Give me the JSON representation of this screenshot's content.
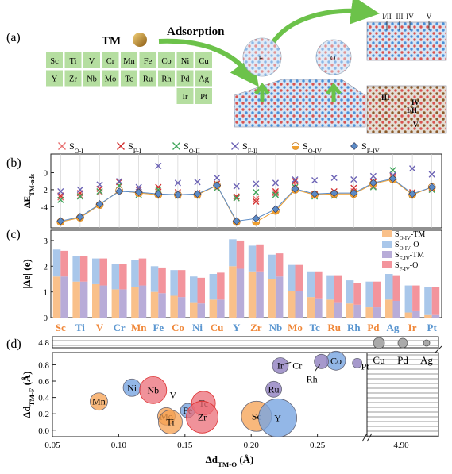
{
  "colors": {
    "o1": "#e87070",
    "f1": "#d23030",
    "o2": "#3fa55a",
    "f2": "#6c63b5",
    "o4": "#f0a030",
    "f4": "#5b8bc6",
    "grid": "#cccccc",
    "tile": "#b5dea0",
    "arrow": "#6cc24a",
    "orange": "#f0883a",
    "blue": "#5a96d0"
  },
  "panel_a": {
    "label": "(a)",
    "tm": "TM",
    "adsorption": "Adsorption",
    "pt_f": "F",
    "pt_o": "O",
    "layers": [
      "I/II",
      "III",
      "IV",
      "V"
    ],
    "side_labels": [
      "III",
      "IV",
      "I/II",
      "V"
    ],
    "table_rows": [
      [
        "Sc",
        "Ti",
        "V",
        "Cr",
        "Mn",
        "Fe",
        "Co",
        "Ni",
        "Cu"
      ],
      [
        "Y",
        "Zr",
        "Nb",
        "Mo",
        "Tc",
        "Ru",
        "Rh",
        "Pd",
        "Ag"
      ],
      [
        "",
        "",
        "",
        "",
        "",
        "",
        "",
        "Ir",
        "Pt"
      ]
    ]
  },
  "legend": [
    {
      "key": "o1",
      "text": "S",
      "sub": "O-I",
      "marker": "x-pink"
    },
    {
      "key": "f1",
      "text": "S",
      "sub": "F-I",
      "marker": "x-red"
    },
    {
      "key": "o2",
      "text": "S",
      "sub": "O-II",
      "marker": "x-green"
    },
    {
      "key": "f2",
      "text": "S",
      "sub": "F-II",
      "marker": "x-purple"
    },
    {
      "key": "o4",
      "text": "S",
      "sub": "O-IV",
      "marker": "half-orange"
    },
    {
      "key": "f4",
      "text": "S",
      "sub": "F-IV",
      "marker": "diamond-blue"
    }
  ],
  "elements": [
    "Sc",
    "Ti",
    "V",
    "Cr",
    "Mn",
    "Fe",
    "Co",
    "Ni",
    "Cu",
    "Y",
    "Zr",
    "Nb",
    "Mo",
    "Tc",
    "Ru",
    "Rh",
    "Pd",
    "Ag",
    "Ir",
    "Pt"
  ],
  "element_colors": [
    "o",
    "b",
    "o",
    "b",
    "o",
    "b",
    "o",
    "b",
    "o",
    "b",
    "o",
    "b",
    "o",
    "b",
    "o",
    "b",
    "o",
    "b",
    "o",
    "b"
  ],
  "chart_data": [
    {
      "type": "line",
      "panel": "(b)",
      "ylabel": "ΔE",
      "ylabel_sub": "TM-ads",
      "yticks": [
        -4,
        -2,
        0
      ],
      "ylim": [
        -6.5,
        2.2
      ],
      "series": [
        {
          "key": "o1",
          "values": [
            -2.9,
            -2.7,
            -2.3,
            -1.6,
            -2.4,
            -2.2,
            -2.6,
            -2.6,
            -1.8,
            -3.0,
            -3.1,
            -2.4,
            -1.4,
            -2.6,
            -2.5,
            -2.2,
            -1.6,
            -0.6,
            -2.4,
            -2.0
          ]
        },
        {
          "key": "f1",
          "values": [
            -2.7,
            -2.4,
            -1.9,
            -1.1,
            -2.0,
            -1.7,
            -2.3,
            -2.4,
            -1.3,
            -2.8,
            -3.4,
            -2.2,
            -1.0,
            -2.5,
            -2.2,
            -1.8,
            -1.1,
            -0.4,
            -2.3,
            -1.8
          ]
        },
        {
          "key": "o2",
          "values": [
            -3.2,
            -2.8,
            -2.2,
            -1.5,
            -2.6,
            -2.0,
            -2.7,
            -2.7,
            -1.8,
            -3.0,
            -2.3,
            -2.6,
            -1.7,
            -2.8,
            -2.7,
            -2.4,
            -1.7,
            0.3,
            -2.6,
            -2.0
          ]
        },
        {
          "key": "f2",
          "values": [
            -2.2,
            -2.0,
            -1.4,
            -1.0,
            -1.7,
            0.8,
            -1.2,
            -1.1,
            -0.6,
            -1.6,
            -1.3,
            -1.2,
            -0.8,
            -0.9,
            -0.6,
            -0.8,
            -0.4,
            -0.3,
            0.5,
            -0.2
          ]
        },
        {
          "key": "o4",
          "values": [
            -5.8,
            -5.3,
            -3.8,
            -2.1,
            -2.4,
            -2.6,
            -2.6,
            -2.6,
            -1.5,
            -5.8,
            -5.8,
            -4.5,
            -2.0,
            -2.6,
            -2.5,
            -2.5,
            -1.3,
            -0.8,
            -2.6,
            -1.7
          ]
        },
        {
          "key": "f4",
          "values": [
            -5.7,
            -5.2,
            -3.7,
            -2.2,
            -2.3,
            -2.5,
            -2.6,
            -2.5,
            -1.5,
            -5.7,
            -5.4,
            -4.3,
            -1.9,
            -2.5,
            -2.4,
            -2.4,
            -1.2,
            -0.7,
            -2.5,
            -1.7
          ]
        }
      ]
    },
    {
      "type": "bar",
      "panel": "(c)",
      "ylabel": "|Δe| (e)",
      "yticks": [
        0,
        1,
        2,
        3
      ],
      "ylim": [
        0,
        3.4
      ],
      "legend": [
        {
          "text": "S",
          "sub": "O-IV",
          "tail": "-TM",
          "color": "#f9c08a"
        },
        {
          "text": "S",
          "sub": "O-IV",
          "tail": "-O",
          "color": "#a9c7ea"
        },
        {
          "text": "S",
          "sub": "F-IV",
          "tail": "-TM",
          "color": "#b8acd8"
        },
        {
          "text": "S",
          "sub": "F-IV",
          "tail": "-O",
          "color": "#f3949c"
        }
      ],
      "series": [
        {
          "name": "SO-IV-TM",
          "values": [
            1.6,
            1.4,
            1.3,
            1.1,
            1.2,
            1.0,
            0.85,
            0.6,
            0.7,
            2.0,
            1.8,
            1.5,
            1.05,
            0.8,
            0.7,
            0.55,
            0.4,
            0.7,
            0.2,
            0.1
          ]
        },
        {
          "name": "SO-IV-O",
          "values": [
            1.05,
            1.0,
            1.0,
            1.0,
            1.05,
            1.0,
            1.0,
            1.0,
            1.0,
            1.05,
            1.0,
            0.95,
            1.0,
            1.0,
            0.95,
            0.9,
            1.0,
            1.0,
            1.05,
            1.1
          ]
        },
        {
          "name": "SF-IV-TM",
          "values": [
            1.6,
            1.4,
            1.25,
            1.1,
            1.25,
            0.95,
            0.8,
            0.55,
            0.7,
            1.9,
            1.8,
            1.6,
            1.05,
            0.75,
            0.6,
            0.5,
            0.4,
            0.65,
            0.25,
            0.1
          ]
        },
        {
          "name": "SF-IV-O",
          "values": [
            1.0,
            1.0,
            1.05,
            1.0,
            1.05,
            1.0,
            1.05,
            1.0,
            1.05,
            1.1,
            1.05,
            0.9,
            1.0,
            1.05,
            1.05,
            0.85,
            1.0,
            1.0,
            1.0,
            1.1
          ]
        }
      ]
    },
    {
      "type": "scatter",
      "panel": "(d)",
      "xlabel": "Δd",
      "xlabel_sub": "TM-O",
      "xlabel_unit": " (Å)",
      "ylabel": "Δd",
      "ylabel_sub": "TM-F",
      "ylabel_unit": " (Å)",
      "xticks": [
        "0.05",
        "0.10",
        "0.15",
        "0.20",
        "0.25"
      ],
      "xtick_break": "4.90",
      "yticks": [
        "0.0",
        "0.2",
        "0.4",
        "0.6",
        "0.8"
      ],
      "ytick_break": "4.8",
      "xlim": [
        0.05,
        0.285
      ],
      "ylim": [
        -0.08,
        0.95
      ],
      "points": [
        {
          "name": "Mn",
          "x": 0.085,
          "y": 0.35,
          "r": 11,
          "c": "orange"
        },
        {
          "name": "Ni",
          "x": 0.11,
          "y": 0.52,
          "r": 11,
          "c": "blue"
        },
        {
          "name": "Nb",
          "x": 0.126,
          "y": 0.49,
          "r": 17,
          "c": "red"
        },
        {
          "name": "V",
          "x": 0.141,
          "y": 0.43,
          "r": 0,
          "c": "label"
        },
        {
          "name": "Mo",
          "x": 0.136,
          "y": 0.17,
          "r": 11,
          "c": "orange"
        },
        {
          "name": "Ti",
          "x": 0.139,
          "y": 0.1,
          "r": 15,
          "c": "orange"
        },
        {
          "name": "Fe",
          "x": 0.152,
          "y": 0.24,
          "r": 9,
          "c": "blue"
        },
        {
          "name": "Tc",
          "x": 0.164,
          "y": 0.33,
          "r": 15,
          "c": "red"
        },
        {
          "name": "Zr",
          "x": 0.163,
          "y": 0.16,
          "r": 20,
          "c": "red"
        },
        {
          "name": "Sc",
          "x": 0.204,
          "y": 0.17,
          "r": 19,
          "c": "orange"
        },
        {
          "name": "Y",
          "x": 0.22,
          "y": 0.15,
          "r": 24,
          "c": "blue"
        },
        {
          "name": "Ru",
          "x": 0.217,
          "y": 0.5,
          "r": 10,
          "c": "purple"
        },
        {
          "name": "Ir",
          "x": 0.222,
          "y": 0.79,
          "r": 10,
          "c": "purple"
        },
        {
          "name": "Cr",
          "x": 0.224,
          "y": 0.83,
          "r": 0,
          "c": "label"
        },
        {
          "name": "Co",
          "x": 0.264,
          "y": 0.85,
          "r": 12,
          "c": "blue"
        },
        {
          "name": "Rh",
          "x": 0.253,
          "y": 0.84,
          "r": 9,
          "c": "purple"
        },
        {
          "name": "Pt",
          "x": 0.28,
          "y": 0.82,
          "r": 6,
          "c": "purple"
        }
      ],
      "inset": [
        {
          "name": "Cu",
          "r": 7
        },
        {
          "name": "Pd",
          "r": 6
        },
        {
          "name": "Ag",
          "r": 4
        }
      ]
    }
  ]
}
